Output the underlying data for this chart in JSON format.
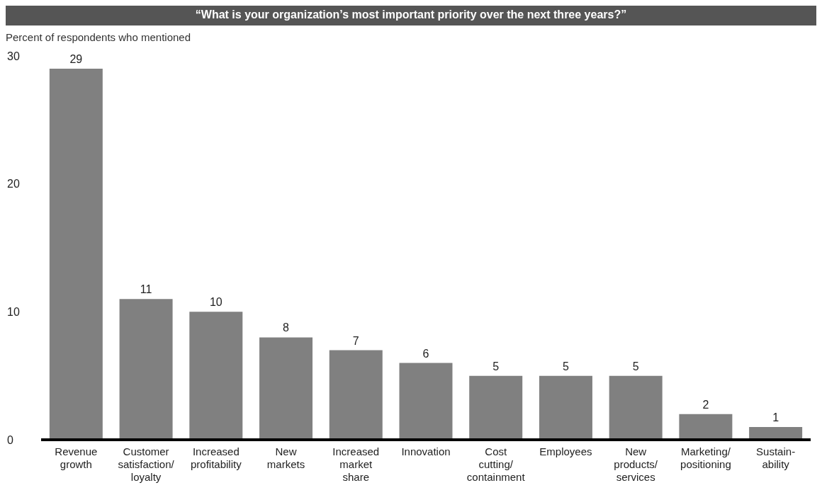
{
  "chart_data": {
    "type": "bar",
    "title": "“What is your organization’s most important priority over the next three years?”",
    "ylabel": "Percent of respondents who mentioned",
    "categories": [
      "Revenue\ngrowth",
      "Customer\nsatisfaction/\nloyalty",
      "Increased\nprofitability",
      "New\nmarkets",
      "Increased\nmarket\nshare",
      "Innovation",
      "Cost\ncutting/\ncontainment",
      "Employees",
      "New\nproducts/\nservices",
      "Marketing/\npositioning",
      "Sustain-\nability"
    ],
    "values": [
      29,
      11,
      10,
      8,
      7,
      6,
      5,
      5,
      5,
      2,
      1
    ],
    "color": "#808080",
    "ylim": [
      0,
      30
    ],
    "yticks": [
      0,
      10,
      20,
      30
    ],
    "grid": false,
    "data_labels": true
  }
}
